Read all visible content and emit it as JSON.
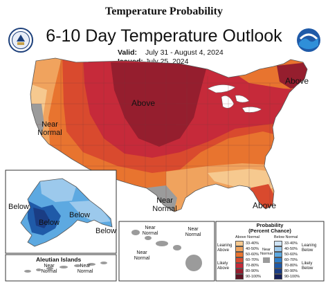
{
  "header": {
    "title": "Temperature Probability"
  },
  "map": {
    "title": "6-10 Day Temperature Outlook",
    "valid_label": "Valid:",
    "valid_value": "July 31 - August 4, 2024",
    "issued_label": "Issued:",
    "issued_value": "July 25, 2024",
    "regions": {
      "above_central": "Above",
      "above_northeast": "Above",
      "above_florida": "Above",
      "near_normal_west": "Near Normal",
      "near_normal_texas": "Near Normal",
      "below_alaska_west": "Below",
      "below_alaska_central": "Below",
      "below_alaska_east": "Below",
      "below_alaska_southeast": "Below"
    },
    "insets": {
      "aleutian_title": "Aleutian Islands",
      "aleutian_near_normal": "Near Normal",
      "hawaii_near_normal": "Near Normal"
    }
  },
  "legend": {
    "title": "Probability",
    "subtitle": "(Percent Chance)",
    "above_header": "Above Normal",
    "below_header": "Below Normal",
    "near_label": "Near Normal",
    "leaning_above": "Leaning Above",
    "likely_above": "Likely Above",
    "leaning_below": "Leaning Below",
    "likely_below": "Likely Below",
    "above_bins": [
      {
        "label": "33-40%",
        "color": "#f6c98f"
      },
      {
        "label": "40-50%",
        "color": "#f0a35e"
      },
      {
        "label": "50-60%",
        "color": "#e8742f"
      },
      {
        "label": "60-70%",
        "color": "#d94a2e"
      },
      {
        "label": "70-80%",
        "color": "#c62a3a"
      },
      {
        "label": "80-90%",
        "color": "#951e2e"
      },
      {
        "label": "90-100%",
        "color": "#5e1424"
      }
    ],
    "below_bins": [
      {
        "label": "33-40%",
        "color": "#cfe3f4"
      },
      {
        "label": "40-50%",
        "color": "#9cc9ec"
      },
      {
        "label": "50-60%",
        "color": "#5da9e1"
      },
      {
        "label": "60-70%",
        "color": "#2f7fcb"
      },
      {
        "label": "70-80%",
        "color": "#1f5aa8"
      },
      {
        "label": "80-90%",
        "color": "#1a3d84"
      },
      {
        "label": "90-100%",
        "color": "#141f5a"
      }
    ],
    "near_color": "#9b9b9b"
  },
  "logos": {
    "left_name": "commerce-seal",
    "right_name": "noaa-logo",
    "noaa_text": "NOAA"
  }
}
